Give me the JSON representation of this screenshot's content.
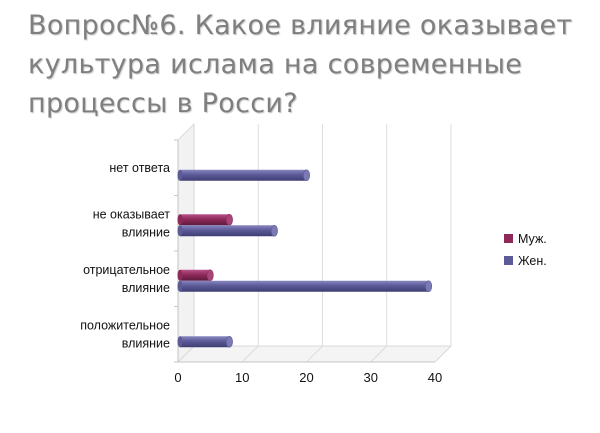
{
  "title": "Вопрос№6. Какое влияние оказывает культура ислама на современные процессы в Росси?",
  "colors": {
    "male": "#8e2a5a",
    "female": "#5c5b98"
  },
  "chart_data": {
    "type": "bar",
    "orientation": "horizontal",
    "categories": [
      [
        "нет ответа"
      ],
      [
        "не оказывает",
        "влияние"
      ],
      [
        "отрицательное",
        "влияние"
      ],
      [
        "положительное",
        "влияние"
      ]
    ],
    "series": [
      {
        "name": "Муж.",
        "values": [
          0,
          8,
          5,
          0
        ],
        "color": "#8e2a5a"
      },
      {
        "name": "Жен.",
        "values": [
          20,
          15,
          39,
          8
        ],
        "color": "#5c5b98"
      }
    ],
    "xlim": [
      0,
      40
    ],
    "xticks": [
      "0",
      "10",
      "20",
      "30",
      "40"
    ],
    "grid": true,
    "legend": "right",
    "style": "3d"
  }
}
